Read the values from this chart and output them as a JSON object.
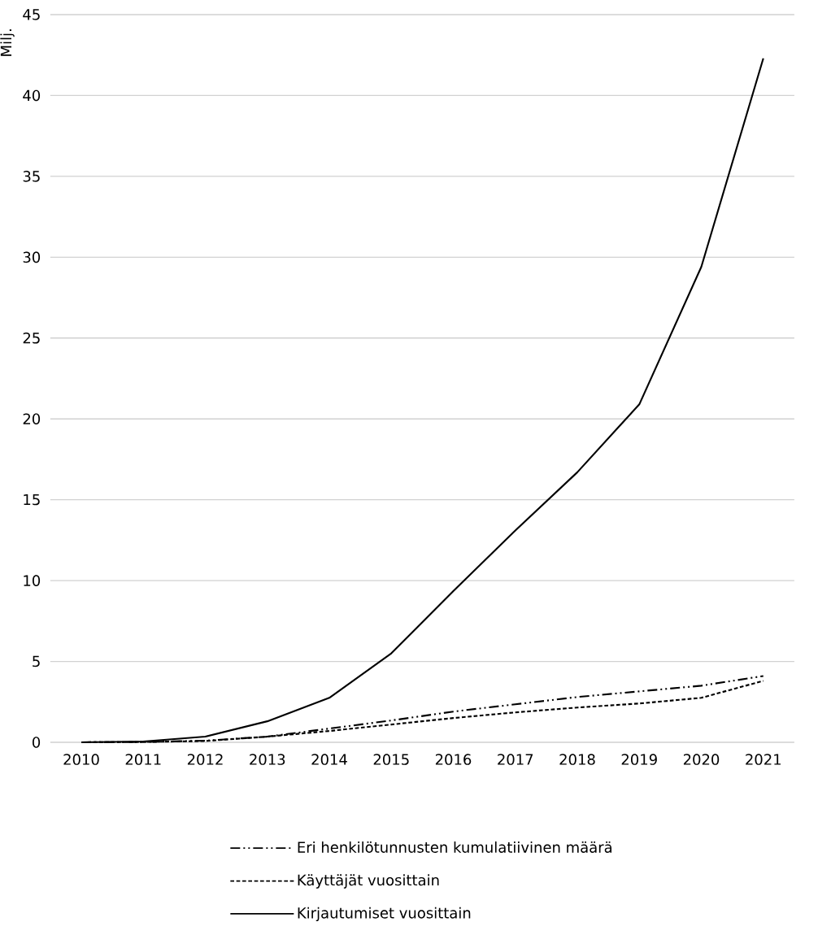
{
  "chart_data": {
    "type": "line",
    "ylabel": "Milj.",
    "categories": [
      "2010",
      "2011",
      "2012",
      "2013",
      "2014",
      "2015",
      "2016",
      "2017",
      "2018",
      "2019",
      "2020",
      "2021"
    ],
    "series": [
      {
        "name": "Eri henkilötunnusten kumulatiivinen määrä",
        "color": "#000000",
        "line_style": "dashdotdotted",
        "values": [
          0,
          0.02,
          0.1,
          0.35,
          0.85,
          1.35,
          1.9,
          2.35,
          2.8,
          3.15,
          3.5,
          4.1
        ]
      },
      {
        "name": "Käyttäjät vuosittain",
        "color": "#000000",
        "line_style": "dashed",
        "values": [
          0,
          0.02,
          0.08,
          0.35,
          0.7,
          1.1,
          1.5,
          1.85,
          2.15,
          2.4,
          2.75,
          3.8
        ]
      },
      {
        "name": "Kirjautumiset vuosittain",
        "color": "#000000",
        "line_style": "solid",
        "values": [
          0,
          0.05,
          0.35,
          1.3,
          2.75,
          5.5,
          9.35,
          13.1,
          16.7,
          20.9,
          29.4,
          42.3
        ]
      }
    ],
    "ylim": [
      0,
      45
    ],
    "yticks": [
      0,
      5,
      10,
      15,
      20,
      25,
      30,
      35,
      40,
      45
    ],
    "grid": "y",
    "legend": "bottom",
    "marker": "none"
  }
}
